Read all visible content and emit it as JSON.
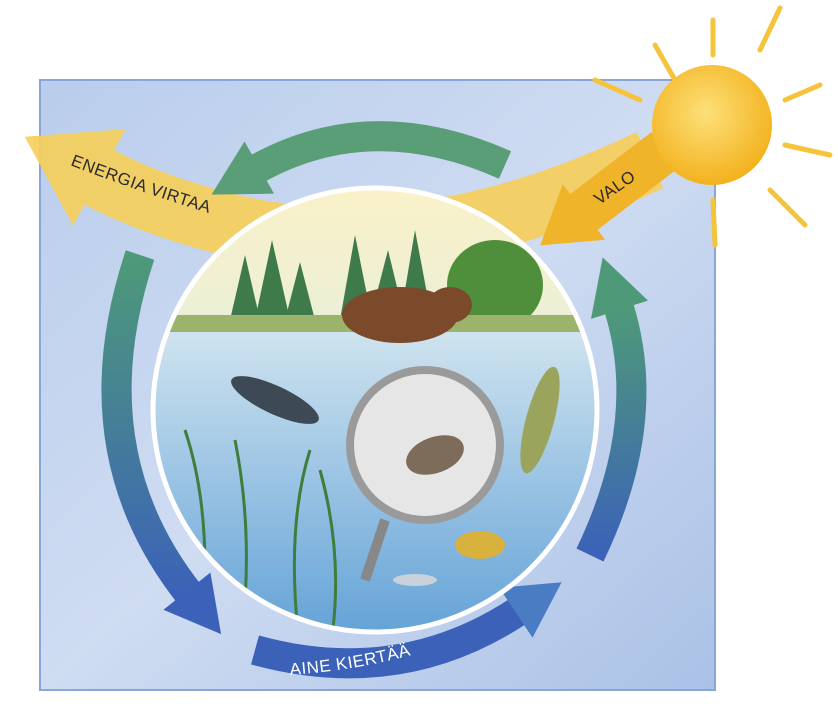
{
  "labels": {
    "energy": "ENERGIA VIRTAA",
    "light": "VALO",
    "matter": "AINE KIERTÄÄ"
  }
}
